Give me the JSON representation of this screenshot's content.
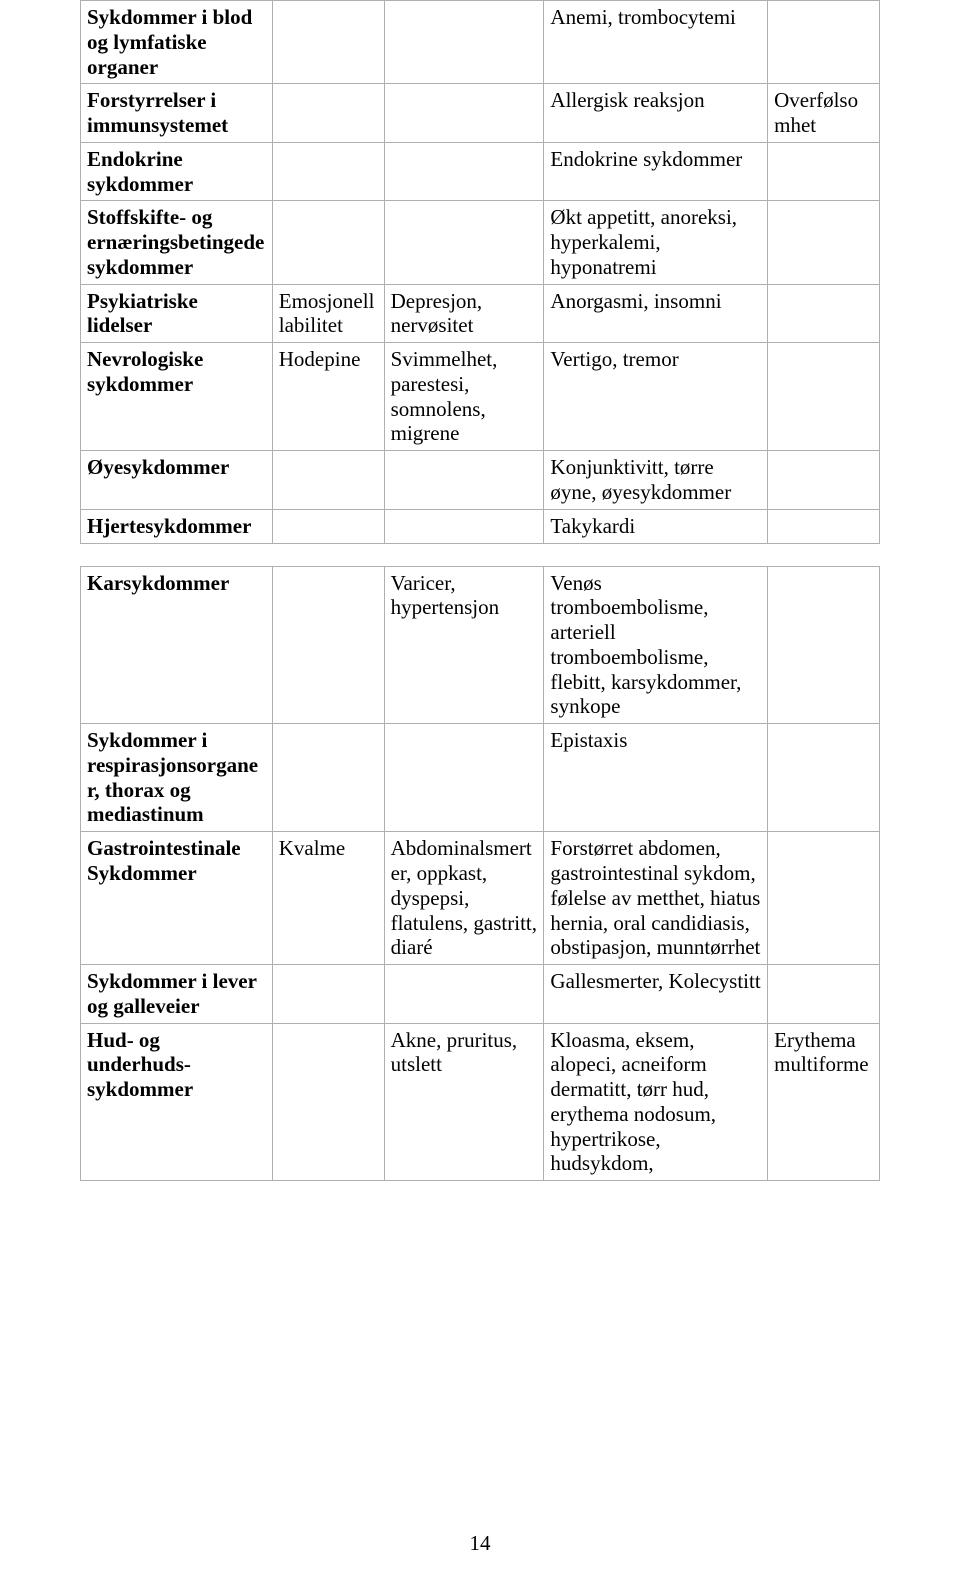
{
  "page_number": "14",
  "t1": {
    "r0": {
      "c0": "Sykdommer i blod og lymfatiske organer",
      "c3": "Anemi, trombocytemi"
    },
    "r1": {
      "c0": "Forstyrrelser i immunsystemet",
      "c3": "Allergisk reaksjon",
      "c4": "Overfølsomhet"
    },
    "r2": {
      "c0": "Endokrine sykdommer",
      "c3": "Endokrine sykdommer"
    },
    "r3": {
      "c0": "Stoffskifte- og ernæringsbetingede sykdommer",
      "c3": "Økt appetitt, anoreksi, hyperkalemi, hyponatremi"
    },
    "r4": {
      "c0": "Psykiatriske lidelser",
      "c1": "Emosjonell labilitet",
      "c2": "Depresjon, nervøsitet",
      "c3": "Anorgasmi, insomni"
    },
    "r5": {
      "c0": "Nevrologiske sykdommer",
      "c1": "Hodepine",
      "c2": "Svimmelhet, parestesi, somnolens, migrene",
      "c3": "Vertigo, tremor"
    },
    "r6": {
      "c0": "Øyesykdommer",
      "c3": "Konjunktivitt, tørre øyne, øyesykdommer"
    },
    "r7": {
      "c0": "Hjertesykdommer",
      "c3": "Takykardi"
    }
  },
  "t2": {
    "r0": {
      "c0": "Karsykdommer",
      "c2": "Varicer, hypertensjon",
      "c3": "Venøs tromboembolisme, arteriell tromboembolisme, flebitt, karsykdommer, synkope"
    },
    "r1": {
      "c0": "Sykdommer i respirasjonsorganer, thorax og mediastinum",
      "c3": "Epistaxis"
    },
    "r2": {
      "c0": "Gastrointestinale Sykdommer",
      "c1": "Kvalme",
      "c2": "Abdominalsmerter, oppkast, dyspepsi, flatulens, gastritt, diaré",
      "c3": "Forstørret abdomen, gastrointestinal sykdom, følelse av metthet, hiatus hernia, oral candidiasis, obstipasjon, munntørrhet"
    },
    "r3": {
      "c0": "Sykdommer i lever og galleveier",
      "c3": "Gallesmerter, Kolecystitt"
    },
    "r4": {
      "c0": "Hud- og underhuds-sykdommer",
      "c2": "Akne, pruritus, utslett",
      "c3": "Kloasma, eksem, alopeci, acneiform dermatitt, tørr hud, erythema nodosum, hypertrikose, hudsykdom,",
      "c4": "Erythema multiforme"
    }
  }
}
